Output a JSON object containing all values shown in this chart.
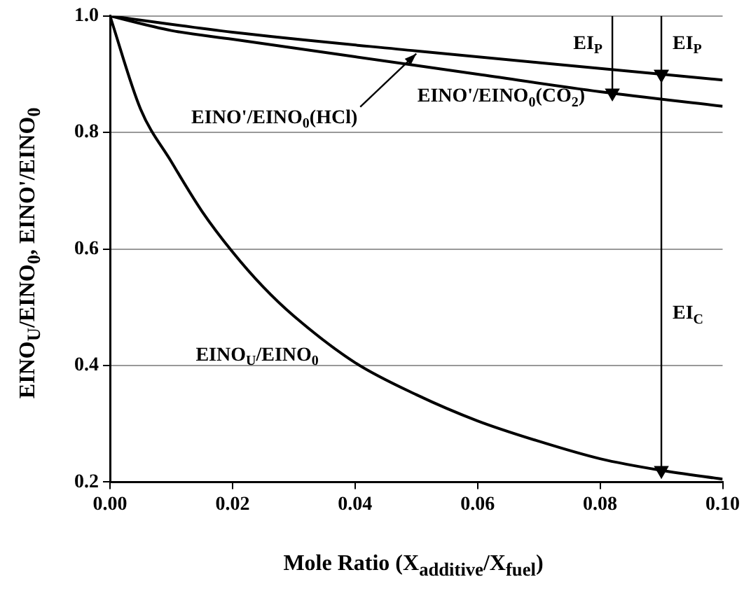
{
  "chart_data": {
    "type": "line",
    "xlabel": "Mole Ratio (X$_{additive}$/X$_{fuel}$)",
    "ylabel": "EINO$_{U}$/EINO$_{0}$, EINO'/EINO$_{0}$",
    "xlim": [
      0,
      0.1
    ],
    "xticks": [
      {
        "value": 0,
        "label": "0.00"
      },
      {
        "value": 0.02,
        "label": "0.02"
      },
      {
        "value": 0.04,
        "label": "0.04"
      },
      {
        "value": 0.06,
        "label": "0.06"
      },
      {
        "value": 0.08,
        "label": "0.08"
      },
      {
        "value": 0.1,
        "label": "0.10"
      }
    ],
    "ylim": [
      0.2,
      1
    ],
    "yticks": [
      {
        "value": 0.2,
        "label": "0.2"
      },
      {
        "value": 0.4,
        "label": "0.4"
      },
      {
        "value": 0.6,
        "label": "0.6"
      },
      {
        "value": 0.8,
        "label": "0.8"
      },
      {
        "value": 1,
        "label": "1.0"
      }
    ],
    "grid": "y",
    "marker": "none",
    "line_style": "solid",
    "series": [
      {
        "name": "EINO$_{U}$/EINO$_{0}$",
        "color": "#000000",
        "x": [
          0,
          0.005,
          0.01,
          0.015,
          0.02,
          0.025,
          0.03,
          0.04,
          0.05,
          0.06,
          0.07,
          0.08,
          0.09,
          0.1
        ],
        "values": [
          1,
          0.84,
          0.75,
          0.665,
          0.595,
          0.535,
          0.485,
          0.405,
          0.35,
          0.305,
          0.27,
          0.24,
          0.22,
          0.205
        ]
      },
      {
        "name": "EINO'/EINO$_{0}$(HCl)",
        "color": "#000000",
        "x": [
          0,
          0.02,
          0.05,
          0.08,
          0.1
        ],
        "values": [
          1,
          0.972,
          0.94,
          0.91,
          0.89
        ]
      },
      {
        "name": "EINO'/EINO$_{0}$(CO$_{2}$)",
        "color": "#000000",
        "x": [
          0,
          0.01,
          0.02,
          0.04,
          0.06,
          0.08,
          0.1
        ],
        "values": [
          1,
          0.975,
          0.96,
          0.93,
          0.9,
          0.87,
          0.845
        ]
      },
      {
        "name": "EI$_{P}$",
        "color": "#000000",
        "marker": "triangle",
        "x": [
          0.082,
          0.082
        ],
        "values": [
          1,
          0.868
        ]
      },
      {
        "name": "EI$_{P}$",
        "color": "#000000",
        "marker": "triangle",
        "x": [
          0.09,
          0.09
        ],
        "values": [
          1,
          0.9
        ]
      },
      {
        "name": "EI$_{C}$",
        "color": "#000000",
        "marker": "triangle",
        "x": [
          0.09,
          0.09
        ],
        "values": [
          0.9,
          0.22
        ]
      }
    ]
  }
}
